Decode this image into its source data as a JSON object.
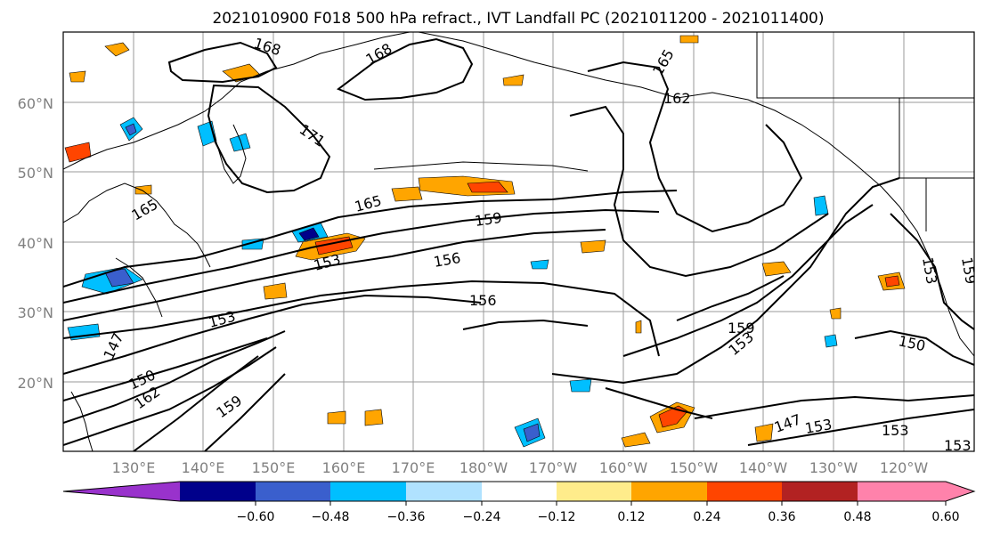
{
  "title": "2021010900 F018 500 hPa refract., IVT Landfall PC (2021011200 - 2021011400)",
  "map": {
    "lat_labels": [
      "60°N",
      "50°N",
      "40°N",
      "30°N",
      "20°N"
    ],
    "lon_labels": [
      "130°E",
      "140°E",
      "150°E",
      "160°E",
      "170°E",
      "180°W",
      "170°W",
      "160°W",
      "150°W",
      "140°W",
      "130°W",
      "120°W"
    ],
    "contour_labels": [
      "168",
      "168",
      "165",
      "162",
      "171",
      "165",
      "159",
      "156",
      "153",
      "156",
      "153",
      "147",
      "150",
      "162",
      "159",
      "159",
      "153",
      "150",
      "147",
      "153",
      "153",
      "153",
      "153",
      "159",
      "165"
    ]
  },
  "colorbar": {
    "colors": [
      "#9932cc",
      "#00008b",
      "#3a5fcd",
      "#00bfff",
      "#b0e2ff",
      "#ffffff",
      "#ffec8b",
      "#ffa500",
      "#ff4500",
      "#b22222",
      "#ff82ab"
    ],
    "tick_labels": [
      "−0.60",
      "−0.48",
      "−0.36",
      "−0.24",
      "−0.12",
      "0.12",
      "0.24",
      "0.36",
      "0.48",
      "0.60"
    ]
  }
}
